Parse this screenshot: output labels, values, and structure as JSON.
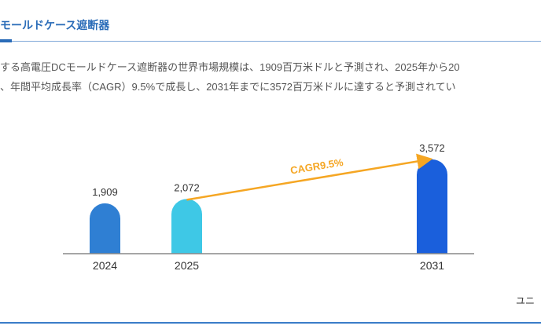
{
  "header": {
    "title": "モールドケース遮断器"
  },
  "description": {
    "line1": "する高電圧DCモールドケース遮断器の世界市場規模は、1909百万米ドルと予測され、2025年から20",
    "line2": "、年間平均成長率（CAGR）9.5%で成長し、2031年までに3572百万米ドルに達すると予測されてい"
  },
  "unit_label": "ユニ",
  "colors": {
    "title": "#2a6cb8",
    "arrow": "#f5a623",
    "bars": [
      "#2f7fd3",
      "#3ec8e6",
      "#1a5fdc"
    ]
  },
  "chart_data": {
    "type": "bar",
    "categories": [
      "2024",
      "2025",
      "2031"
    ],
    "values": [
      1909,
      2072,
      3572
    ],
    "data_labels": [
      "1,909",
      "2,072",
      "3,572"
    ],
    "annotation": {
      "text": "CAGR9.5%",
      "from": "2025",
      "to": "2031"
    },
    "title": "",
    "xlabel": "",
    "ylabel": "",
    "ylim": [
      0,
      3572
    ],
    "grid": false
  }
}
